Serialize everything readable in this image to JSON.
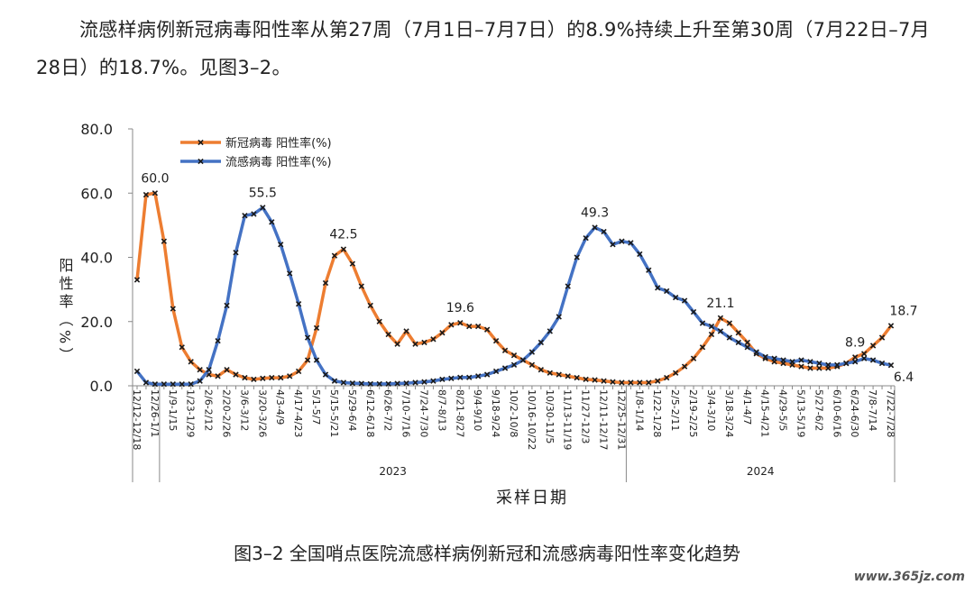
{
  "paragraph": "流感样病例新冠病毒阳性率从第27周（7月1日–7月7日）的8.9%持续上升至第30周（7月22日–7月28日）的18.7%。见图3–2。",
  "chart_data": {
    "type": "line",
    "ylabel": "阳性率（%）",
    "xlabel": "采样日期",
    "x_groups": [
      "2023",
      "2024"
    ],
    "ylim": [
      0,
      80
    ],
    "yticks": [
      {
        "value": 0,
        "label": "0.0"
      },
      {
        "value": 20,
        "label": "20.0"
      },
      {
        "value": 40,
        "label": "40.0"
      },
      {
        "value": 60,
        "label": "60.0"
      },
      {
        "value": 80,
        "label": "80.0"
      }
    ],
    "legend": "top-left",
    "categories": [
      "12/12-12/18",
      null,
      "12/26-1/1",
      null,
      "1/9-1/15",
      null,
      "1/23-1/29",
      null,
      "2/6-2/12",
      null,
      "2/20-2/26",
      null,
      "3/6-3/12",
      null,
      "3/20-3/26",
      null,
      "4/3-4/9",
      null,
      "4/17-4/23",
      null,
      "5/1-5/7",
      null,
      "5/15-5/21",
      null,
      "5/29-6/4",
      null,
      "6/12-6/18",
      null,
      "6/26-7/2",
      null,
      "7/10-7/16",
      null,
      "7/24-7/30",
      null,
      "8/7-8/13",
      null,
      "8/21-8/27",
      null,
      "9/4-9/10",
      null,
      "9/18-9/24",
      null,
      "10/2-10/8",
      null,
      "10/16-10/22",
      null,
      "10/30-11/5",
      null,
      "11/13-11/19",
      null,
      "11/27-12/3",
      null,
      "12/11-12/17",
      null,
      "12/25-12/31",
      null,
      "1/8-1/14",
      null,
      "1/22-1/28",
      null,
      "2/5-2/11",
      null,
      "2/19-2/25",
      null,
      "3/4-3/10",
      null,
      "3/18-3/24",
      null,
      "4/1-4/7",
      null,
      "4/15-4/21",
      null,
      "4/29-5/5",
      null,
      "5/13-5/19",
      null,
      "5/27-6/2",
      null,
      "6/10-6/16",
      null,
      "6/24-6/30",
      null,
      "7/8-7/14",
      null,
      "7/22-7/28"
    ],
    "series": [
      {
        "name": "新冠病毒 阳性率(%)",
        "color": "#ed7d31",
        "values": [
          33,
          59.5,
          60,
          45,
          24,
          12,
          7.5,
          5,
          3.5,
          3,
          5,
          3.5,
          2.5,
          2,
          2.3,
          2.5,
          2.5,
          3,
          4.5,
          8,
          18,
          32,
          40.5,
          42.5,
          38,
          31,
          25,
          20,
          16,
          13,
          17,
          13,
          13.5,
          14.5,
          16.5,
          19,
          19.6,
          18.5,
          18.5,
          17.5,
          14,
          11,
          9.5,
          8,
          6.5,
          5,
          4,
          3.5,
          3,
          2.5,
          2,
          1.8,
          1.5,
          1.2,
          1,
          1,
          1,
          1,
          1.5,
          2.5,
          4,
          6,
          8.5,
          12,
          16,
          21.1,
          19.5,
          16.5,
          13.5,
          10,
          8.5,
          7.5,
          7,
          6.5,
          6,
          5.5,
          5.5,
          5.5,
          6,
          7,
          8.9,
          10,
          12.5,
          15,
          18.7
        ],
        "value_labels": [
          null,
          null,
          "60.0",
          null,
          null,
          null,
          null,
          null,
          null,
          null,
          null,
          null,
          null,
          null,
          null,
          null,
          null,
          null,
          null,
          null,
          null,
          null,
          null,
          "42.5",
          null,
          null,
          null,
          null,
          null,
          null,
          null,
          null,
          null,
          null,
          null,
          null,
          "19.6",
          null,
          null,
          null,
          null,
          null,
          null,
          null,
          null,
          null,
          null,
          null,
          null,
          null,
          null,
          null,
          null,
          null,
          null,
          null,
          null,
          null,
          null,
          null,
          null,
          null,
          null,
          null,
          null,
          "21.1",
          null,
          null,
          null,
          null,
          null,
          null,
          null,
          null,
          null,
          null,
          null,
          null,
          null,
          null,
          "8.9",
          null,
          null,
          null,
          "18.7"
        ]
      },
      {
        "name": "流感病毒 阳性率(%)",
        "color": "#4472c4",
        "values": [
          4.5,
          1,
          0.5,
          0.5,
          0.5,
          0.5,
          0.5,
          1.5,
          5,
          14,
          25,
          41.5,
          53,
          53.5,
          55.5,
          51,
          44,
          35,
          25.5,
          15,
          8,
          3.5,
          1.5,
          1,
          0.8,
          0.7,
          0.6,
          0.6,
          0.6,
          0.7,
          0.8,
          1,
          1.2,
          1.5,
          2,
          2.3,
          2.6,
          2.6,
          3,
          3.5,
          4.5,
          5.5,
          6.5,
          8,
          10.5,
          13.5,
          17,
          21.5,
          31,
          40,
          46,
          49.3,
          48,
          44,
          45,
          44.5,
          41,
          36,
          30.5,
          29.5,
          27.5,
          26.5,
          23,
          19.5,
          18.5,
          17,
          15,
          13.5,
          12,
          10.5,
          9,
          8.5,
          8,
          7.5,
          8,
          7.5,
          7,
          6.5,
          6.5,
          7,
          7.5,
          8.5,
          8,
          7,
          6.4
        ],
        "value_labels": [
          null,
          null,
          null,
          null,
          null,
          null,
          null,
          null,
          null,
          null,
          null,
          null,
          null,
          null,
          "55.5",
          null,
          null,
          null,
          null,
          null,
          null,
          null,
          null,
          null,
          null,
          null,
          null,
          null,
          null,
          null,
          null,
          null,
          null,
          null,
          null,
          null,
          null,
          null,
          null,
          null,
          null,
          null,
          null,
          null,
          null,
          null,
          null,
          null,
          null,
          null,
          null,
          "49.3",
          null,
          null,
          null,
          null,
          null,
          null,
          null,
          null,
          null,
          null,
          null,
          null,
          null,
          null,
          null,
          null,
          null,
          null,
          null,
          null,
          null,
          null,
          null,
          null,
          null,
          null,
          null,
          null,
          null,
          null,
          null,
          null,
          "6.4"
        ]
      }
    ]
  },
  "caption": "图3–2 全国哨点医院流感样病例新冠和流感病毒阳性率变化趋势",
  "watermark": "www.365jz.com"
}
